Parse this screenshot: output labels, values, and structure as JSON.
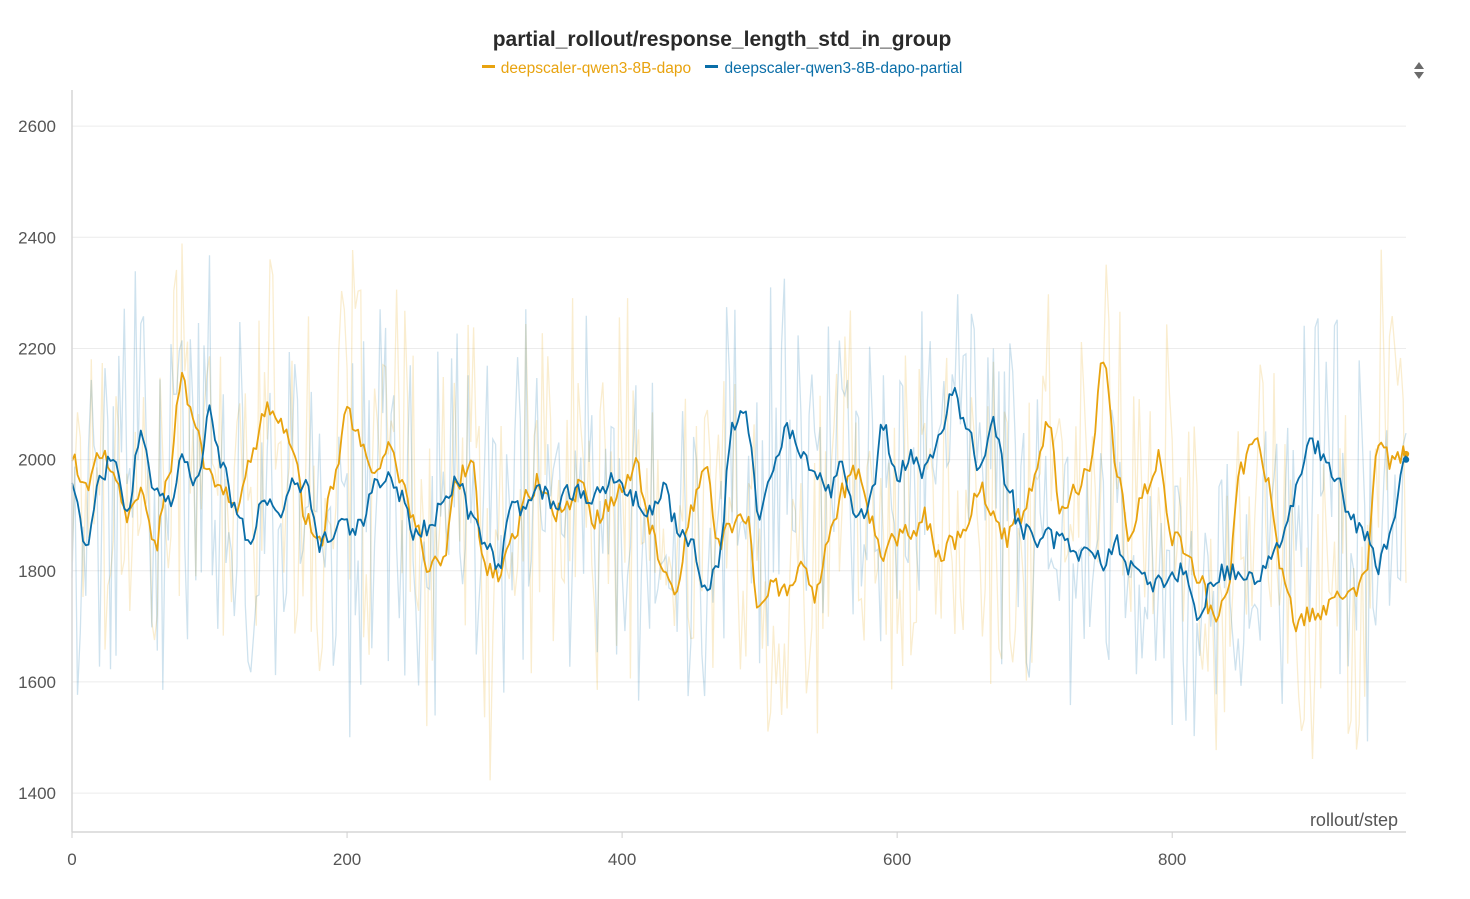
{
  "chart_data": {
    "type": "line",
    "title": "partial_rollout/response_length_std_in_group",
    "xlabel": "rollout/step",
    "ylabel": "",
    "xlim": [
      0,
      970
    ],
    "ylim": [
      1330,
      2665
    ],
    "xticks": [
      0,
      200,
      400,
      600,
      800
    ],
    "yticks": [
      1400,
      1600,
      1800,
      2000,
      2200,
      2400,
      2600
    ],
    "grid": true,
    "legend_position": "top-center",
    "smoothing": "smoothed line drawn over faint raw series",
    "series": [
      {
        "name": "deepscaler-qwen3-8B-dapo",
        "color": "#e8a30f",
        "smoothed": [
          [
            0,
            2000
          ],
          [
            10,
            1950
          ],
          [
            20,
            2020
          ],
          [
            30,
            1960
          ],
          [
            40,
            1900
          ],
          [
            50,
            1950
          ],
          [
            60,
            1840
          ],
          [
            70,
            1960
          ],
          [
            80,
            2150
          ],
          [
            90,
            2050
          ],
          [
            100,
            1970
          ],
          [
            110,
            1940
          ],
          [
            120,
            1900
          ],
          [
            130,
            2000
          ],
          [
            140,
            2090
          ],
          [
            150,
            2060
          ],
          [
            160,
            2030
          ],
          [
            170,
            1900
          ],
          [
            180,
            1850
          ],
          [
            190,
            1960
          ],
          [
            200,
            2080
          ],
          [
            210,
            2040
          ],
          [
            220,
            1970
          ],
          [
            230,
            2030
          ],
          [
            240,
            1950
          ],
          [
            250,
            1880
          ],
          [
            260,
            1800
          ],
          [
            270,
            1830
          ],
          [
            280,
            1960
          ],
          [
            290,
            2000
          ],
          [
            300,
            1800
          ],
          [
            310,
            1790
          ],
          [
            320,
            1850
          ],
          [
            330,
            1930
          ],
          [
            340,
            1960
          ],
          [
            350,
            1900
          ],
          [
            360,
            1920
          ],
          [
            370,
            1950
          ],
          [
            380,
            1890
          ],
          [
            390,
            1920
          ],
          [
            400,
            1940
          ],
          [
            410,
            1990
          ],
          [
            420,
            1880
          ],
          [
            430,
            1810
          ],
          [
            440,
            1760
          ],
          [
            450,
            1900
          ],
          [
            460,
            1990
          ],
          [
            470,
            1850
          ],
          [
            480,
            1880
          ],
          [
            490,
            1900
          ],
          [
            500,
            1730
          ],
          [
            510,
            1780
          ],
          [
            520,
            1760
          ],
          [
            530,
            1800
          ],
          [
            540,
            1760
          ],
          [
            550,
            1860
          ],
          [
            560,
            1940
          ],
          [
            570,
            1980
          ],
          [
            580,
            1900
          ],
          [
            590,
            1830
          ],
          [
            600,
            1860
          ],
          [
            610,
            1870
          ],
          [
            620,
            1900
          ],
          [
            630,
            1820
          ],
          [
            640,
            1850
          ],
          [
            650,
            1880
          ],
          [
            660,
            1950
          ],
          [
            670,
            1890
          ],
          [
            680,
            1860
          ],
          [
            690,
            1900
          ],
          [
            700,
            1960
          ],
          [
            710,
            2070
          ],
          [
            720,
            1900
          ],
          [
            730,
            1950
          ],
          [
            740,
            1990
          ],
          [
            750,
            2190
          ],
          [
            760,
            1980
          ],
          [
            770,
            1850
          ],
          [
            780,
            1950
          ],
          [
            790,
            2000
          ],
          [
            800,
            1860
          ],
          [
            810,
            1840
          ],
          [
            820,
            1780
          ],
          [
            830,
            1720
          ],
          [
            840,
            1770
          ],
          [
            850,
            1980
          ],
          [
            860,
            2040
          ],
          [
            870,
            1960
          ],
          [
            880,
            1800
          ],
          [
            890,
            1700
          ],
          [
            900,
            1720
          ],
          [
            910,
            1730
          ],
          [
            920,
            1760
          ],
          [
            930,
            1760
          ],
          [
            940,
            1790
          ],
          [
            950,
            2040
          ],
          [
            960,
            1990
          ],
          [
            970,
            2010
          ]
        ]
      },
      {
        "name": "deepscaler-qwen3-8B-dapo-partial",
        "color": "#0a6ea8",
        "smoothed": [
          [
            0,
            1960
          ],
          [
            10,
            1850
          ],
          [
            20,
            1960
          ],
          [
            30,
            2010
          ],
          [
            40,
            1900
          ],
          [
            50,
            2040
          ],
          [
            60,
            1940
          ],
          [
            70,
            1920
          ],
          [
            80,
            2000
          ],
          [
            90,
            1960
          ],
          [
            100,
            2080
          ],
          [
            110,
            1990
          ],
          [
            120,
            1900
          ],
          [
            130,
            1840
          ],
          [
            140,
            1940
          ],
          [
            150,
            1900
          ],
          [
            160,
            1970
          ],
          [
            170,
            1950
          ],
          [
            180,
            1850
          ],
          [
            190,
            1870
          ],
          [
            200,
            1880
          ],
          [
            210,
            1880
          ],
          [
            220,
            1960
          ],
          [
            230,
            1960
          ],
          [
            240,
            1930
          ],
          [
            250,
            1860
          ],
          [
            260,
            1880
          ],
          [
            270,
            1920
          ],
          [
            280,
            1960
          ],
          [
            290,
            1900
          ],
          [
            300,
            1850
          ],
          [
            310,
            1800
          ],
          [
            320,
            1920
          ],
          [
            330,
            1910
          ],
          [
            340,
            1950
          ],
          [
            350,
            1920
          ],
          [
            360,
            1940
          ],
          [
            370,
            1940
          ],
          [
            380,
            1930
          ],
          [
            390,
            1960
          ],
          [
            400,
            1950
          ],
          [
            410,
            1930
          ],
          [
            420,
            1910
          ],
          [
            430,
            1950
          ],
          [
            440,
            1880
          ],
          [
            450,
            1850
          ],
          [
            460,
            1760
          ],
          [
            470,
            1810
          ],
          [
            480,
            2060
          ],
          [
            490,
            2080
          ],
          [
            500,
            1900
          ],
          [
            510,
            1980
          ],
          [
            520,
            2060
          ],
          [
            530,
            2010
          ],
          [
            540,
            1980
          ],
          [
            550,
            1940
          ],
          [
            560,
            1990
          ],
          [
            570,
            1880
          ],
          [
            580,
            1920
          ],
          [
            590,
            2060
          ],
          [
            600,
            1970
          ],
          [
            610,
            2000
          ],
          [
            620,
            1980
          ],
          [
            630,
            2040
          ],
          [
            640,
            2130
          ],
          [
            650,
            2060
          ],
          [
            660,
            1980
          ],
          [
            670,
            2060
          ],
          [
            680,
            1960
          ],
          [
            690,
            1870
          ],
          [
            700,
            1860
          ],
          [
            710,
            1860
          ],
          [
            720,
            1850
          ],
          [
            730,
            1830
          ],
          [
            740,
            1850
          ],
          [
            750,
            1810
          ],
          [
            760,
            1850
          ],
          [
            770,
            1800
          ],
          [
            780,
            1780
          ],
          [
            790,
            1780
          ],
          [
            800,
            1790
          ],
          [
            810,
            1800
          ],
          [
            820,
            1720
          ],
          [
            830,
            1790
          ],
          [
            840,
            1800
          ],
          [
            850,
            1800
          ],
          [
            860,
            1780
          ],
          [
            870,
            1820
          ],
          [
            880,
            1850
          ],
          [
            890,
            1940
          ],
          [
            900,
            2030
          ],
          [
            910,
            2010
          ],
          [
            920,
            1960
          ],
          [
            930,
            1900
          ],
          [
            940,
            1860
          ],
          [
            950,
            1810
          ],
          [
            960,
            1870
          ],
          [
            970,
            2000
          ]
        ]
      }
    ]
  },
  "icons": {
    "sort_toggle": "sort-arrows-icon"
  }
}
